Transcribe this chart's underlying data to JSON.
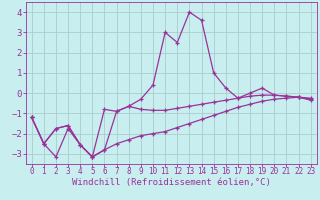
{
  "xlabel": "Windchill (Refroidissement éolien,°C)",
  "background_color": "#c8eef0",
  "grid_color": "#aacccc",
  "line_color": "#993399",
  "x": [
    0,
    1,
    2,
    3,
    4,
    5,
    6,
    7,
    8,
    9,
    10,
    11,
    12,
    13,
    14,
    15,
    16,
    17,
    18,
    19,
    20,
    21,
    22,
    23
  ],
  "line1": [
    -1.2,
    -2.5,
    -3.15,
    -1.75,
    -2.55,
    -3.15,
    -2.8,
    -2.5,
    -2.3,
    -2.1,
    -2.0,
    -1.9,
    -1.7,
    -1.5,
    -1.3,
    -1.1,
    -0.9,
    -0.7,
    -0.55,
    -0.4,
    -0.3,
    -0.25,
    -0.2,
    -0.3
  ],
  "line2": [
    -1.2,
    -2.5,
    -1.75,
    -1.6,
    -2.55,
    -3.15,
    -0.8,
    -0.9,
    -0.65,
    -0.8,
    -0.85,
    -0.85,
    -0.75,
    -0.65,
    -0.55,
    -0.45,
    -0.35,
    -0.25,
    -0.15,
    -0.1,
    -0.1,
    -0.15,
    -0.2,
    -0.25
  ],
  "line3": [
    -1.2,
    -2.5,
    -1.75,
    -1.6,
    -2.55,
    -3.15,
    -2.8,
    -0.9,
    -0.65,
    -0.3,
    0.4,
    3.0,
    2.5,
    4.0,
    3.6,
    1.0,
    0.25,
    -0.25,
    0.0,
    0.25,
    -0.1,
    -0.15,
    -0.2,
    -0.35
  ],
  "ylim": [
    -3.5,
    4.5
  ],
  "yticks": [
    -3,
    -2,
    -1,
    0,
    1,
    2,
    3,
    4
  ],
  "xlim": [
    -0.5,
    23.5
  ],
  "xticks": [
    0,
    1,
    2,
    3,
    4,
    5,
    6,
    7,
    8,
    9,
    10,
    11,
    12,
    13,
    14,
    15,
    16,
    17,
    18,
    19,
    20,
    21,
    22,
    23
  ],
  "xlabel_fontsize": 6.5,
  "ytick_fontsize": 6.5,
  "xtick_fontsize": 5.5,
  "linewidth": 0.9,
  "markersize": 3.5,
  "markeredgewidth": 0.9
}
